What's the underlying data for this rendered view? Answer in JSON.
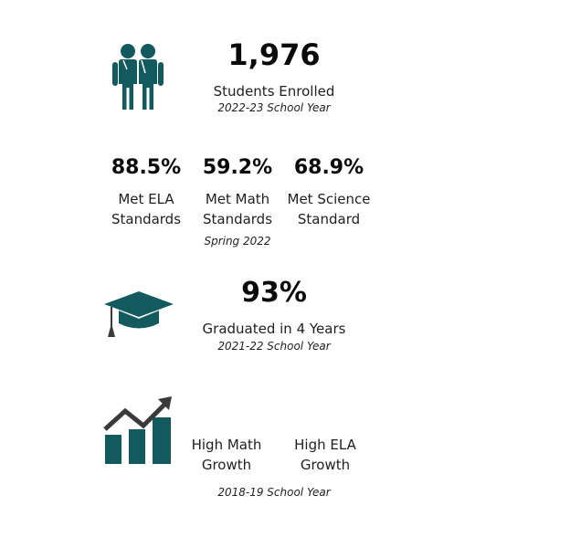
{
  "enrollment": {
    "number": "1,976",
    "label": "Students Enrolled",
    "note": "2022-23 School Year",
    "icon": "students-icon"
  },
  "standards": {
    "ela": {
      "number": "88.5%",
      "label_lines": [
        "Met ELA",
        "Standards"
      ]
    },
    "math": {
      "number": "59.2%",
      "label_lines": [
        "Met Math",
        "Standards"
      ]
    },
    "science": {
      "number": "68.9%",
      "label_lines": [
        "Met Science",
        "Standard"
      ]
    },
    "note": "Spring 2022"
  },
  "graduation": {
    "number": "93%",
    "label": "Graduated in 4 Years",
    "note": "2021-22 School Year",
    "icon": "graduation-cap-icon"
  },
  "growth": {
    "math_lines": [
      "High Math",
      "Growth"
    ],
    "ela_lines": [
      "High ELA",
      "Growth"
    ],
    "note": "2018-19 School Year",
    "icon": "growth-chart-icon"
  },
  "colors": {
    "icon_teal": "#135a5e",
    "icon_gray": "#3a3a3a",
    "text": "#1f1f1f"
  }
}
